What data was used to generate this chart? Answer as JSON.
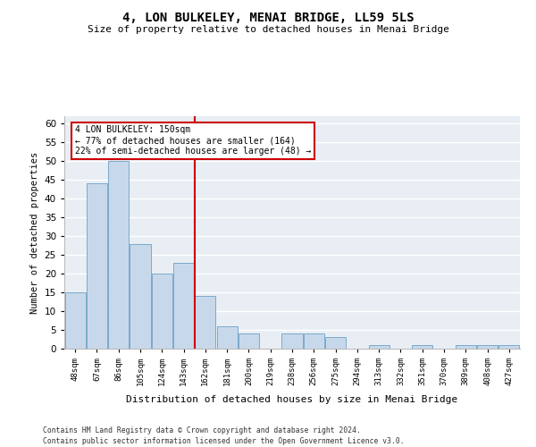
{
  "title1": "4, LON BULKELEY, MENAI BRIDGE, LL59 5LS",
  "title2": "Size of property relative to detached houses in Menai Bridge",
  "xlabel": "Distribution of detached houses by size in Menai Bridge",
  "ylabel": "Number of detached properties",
  "categories": [
    "48sqm",
    "67sqm",
    "86sqm",
    "105sqm",
    "124sqm",
    "143sqm",
    "162sqm",
    "181sqm",
    "200sqm",
    "219sqm",
    "238sqm",
    "256sqm",
    "275sqm",
    "294sqm",
    "313sqm",
    "332sqm",
    "351sqm",
    "370sqm",
    "389sqm",
    "408sqm",
    "427sqm"
  ],
  "values": [
    15,
    44,
    50,
    28,
    20,
    23,
    14,
    6,
    4,
    0,
    4,
    4,
    3,
    0,
    1,
    0,
    1,
    0,
    1,
    1,
    1
  ],
  "bar_color": "#c8d8eb",
  "bar_edge_color": "#7aaacb",
  "vline_color": "#cc0000",
  "annotation_text": "4 LON BULKELEY: 150sqm\n← 77% of detached houses are smaller (164)\n22% of semi-detached houses are larger (48) →",
  "annotation_box_color": "#ffffff",
  "annotation_box_edge": "#cc0000",
  "ylim": [
    0,
    62
  ],
  "yticks": [
    0,
    5,
    10,
    15,
    20,
    25,
    30,
    35,
    40,
    45,
    50,
    55,
    60
  ],
  "background_color": "#e8eef4",
  "grid_color": "#ffffff",
  "fig_background": "#ffffff",
  "footer1": "Contains HM Land Registry data © Crown copyright and database right 2024.",
  "footer2": "Contains public sector information licensed under the Open Government Licence v3.0."
}
